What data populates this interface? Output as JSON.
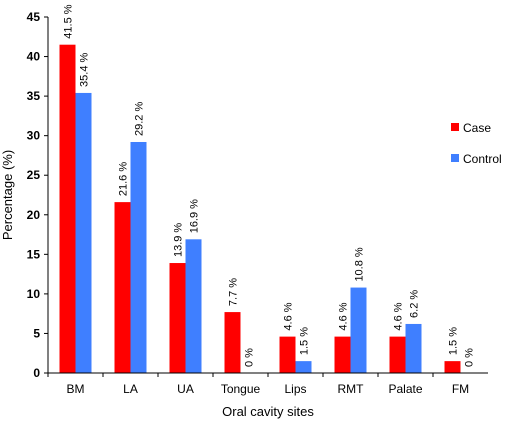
{
  "chart_data": {
    "type": "bar",
    "categories": [
      "BM",
      "LA",
      "UA",
      "Tongue",
      "Lips",
      "RMT",
      "Palate",
      "FM"
    ],
    "series": [
      {
        "name": "Case",
        "color": "#ff0000",
        "values": [
          41.5,
          21.6,
          13.9,
          7.7,
          4.6,
          4.6,
          4.6,
          1.5
        ],
        "labels": [
          "41.5 %",
          "21.6 %",
          "13.9 %",
          "7.7 %",
          "4.6 %",
          "4.6 %",
          "4.6 %",
          "1.5 %"
        ]
      },
      {
        "name": "Control",
        "color": "#3f7fff",
        "values": [
          35.4,
          29.2,
          16.9,
          0,
          1.5,
          10.8,
          6.2,
          0
        ],
        "labels": [
          "35.4 %",
          "29.2 %",
          "16.9 %",
          "0 %",
          "1.5 %",
          "10.8 %",
          "6.2 %",
          "0 %"
        ]
      }
    ],
    "xlabel": "Oral cavity sites",
    "ylabel": "Percentage (%)",
    "ylim": [
      0,
      45
    ],
    "yticks": [
      0,
      5,
      10,
      15,
      20,
      25,
      30,
      35,
      40,
      45
    ],
    "grid": false,
    "legend_position": "right"
  }
}
